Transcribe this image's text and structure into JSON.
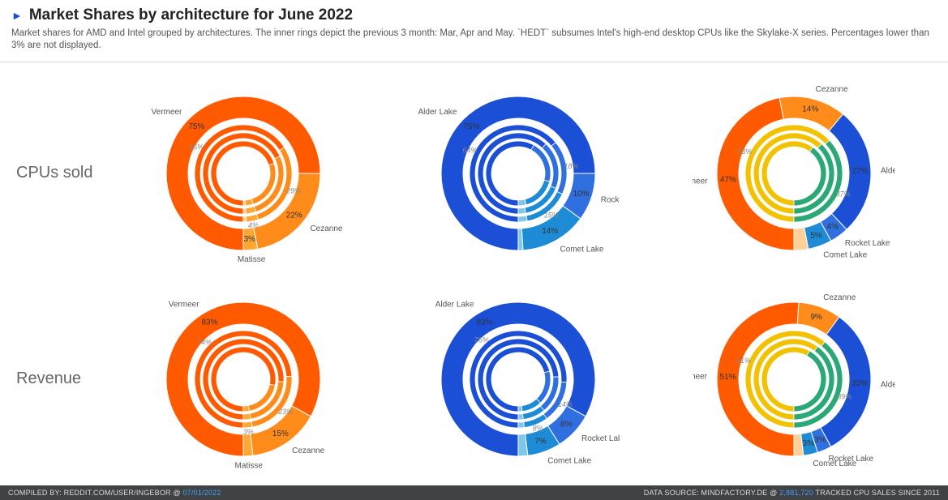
{
  "header": {
    "marker": "►",
    "title": "Market Shares by architecture for June 2022",
    "subtitle": "Market shares for AMD and Intel grouped by architectures. The inner rings depict the previous 3 month: Mar, Apr and May. `HEDT` subsumes Intel's high-end desktop CPUs like the Skylake-X series. Percentages lower than 3% are not displayed."
  },
  "rows": [
    {
      "label": "CPUs sold"
    },
    {
      "label": "Revenue"
    }
  ],
  "footer": {
    "left_prefix": "COMPILED BY: REDDIT.COM/USER/INGEBOR @ ",
    "left_link": "07/01/2022",
    "right_prefix": "DATA SOURCE: MINDFACTORY.DE @ ",
    "right_link": "2,881,720",
    "right_suffix": "  TRACKED CPU SALES SINCE 2011"
  },
  "style": {
    "donut_outer_r": 95,
    "donut_outer_inner": 68,
    "ring_r": [
      60,
      50,
      40
    ],
    "ring_w": 7,
    "hole_r": 32,
    "chart_size": 250,
    "label_radius_offset": 28,
    "title_fontsize": 19,
    "subtitle_fontsize": 11.5,
    "rowlabel_fontsize": 20,
    "seg_fontsize": 10,
    "cat_fontsize": 10,
    "footer_bg": "#404244",
    "footer_fg": "#dcdcdc",
    "link_color": "#3fa0ff",
    "bg": "#ffffff"
  },
  "colors": {
    "vermeer": "#ff5a00",
    "cezanne": "#ff8c1a",
    "matisse": "#ffa733",
    "amd_other": "#ffd199",
    "alder": "#1a4fd6",
    "rocket": "#2f6fe0",
    "comet": "#1e8bd6",
    "intel_other": "#7fc6e8",
    "combined_alder": "#1a4fd6",
    "combined_rocket": "#2f6fe0",
    "combined_comet": "#1e8bd6",
    "combined_vermeer": "#ff5a00",
    "combined_cezanne": "#ff8c1a",
    "inner_amd": "#ff5a00",
    "inner_amd2": "#ffa733",
    "inner_intel": "#f2c200",
    "inner_intel2": "#2aa876"
  },
  "charts": [
    {
      "row": 0,
      "col": 0,
      "name": "amd-cpus",
      "outer": [
        {
          "label": "Vermeer",
          "value": 75,
          "color": "#ff5a00",
          "cat": "Vermeer",
          "show": true
        },
        {
          "label": "Cezanne",
          "value": 22,
          "color": "#ff8c1a",
          "cat": "Cezanne",
          "show": true
        },
        {
          "label": "Matisse",
          "value": 3,
          "color": "#ffa733",
          "cat": "Matisse",
          "show": true
        }
      ],
      "rings": [
        [
          {
            "value": 66,
            "color": "#ff5a00",
            "show": true
          },
          {
            "value": 29,
            "color": "#ff8c1a",
            "show": true
          },
          {
            "value": 4,
            "color": "#ffa733",
            "show": true
          },
          {
            "value": 1,
            "color": "#ffd199",
            "show": false
          }
        ],
        [
          {
            "value": 68,
            "color": "#ff5a00",
            "show": false
          },
          {
            "value": 27,
            "color": "#ff8c1a",
            "show": false
          },
          {
            "value": 4,
            "color": "#ffa733",
            "show": false
          },
          {
            "value": 1,
            "color": "#ffd199",
            "show": false
          }
        ],
        [
          {
            "value": 70,
            "color": "#ff5a00",
            "show": false
          },
          {
            "value": 25,
            "color": "#ff8c1a",
            "show": false
          },
          {
            "value": 4,
            "color": "#ffa733",
            "show": false
          },
          {
            "value": 1,
            "color": "#ffd199",
            "show": false
          }
        ]
      ]
    },
    {
      "row": 0,
      "col": 1,
      "name": "intel-cpus",
      "outer": [
        {
          "label": "Alder Lake",
          "value": 75,
          "color": "#1a4fd6",
          "cat": "Alder Lake",
          "show": true
        },
        {
          "label": "Rocket Lake",
          "value": 10,
          "color": "#2f6fe0",
          "cat": "Rocket Lake",
          "show": true
        },
        {
          "label": "Comet Lake",
          "value": 14,
          "color": "#1e8bd6",
          "cat": "Comet Lake",
          "show": true
        },
        {
          "label": null,
          "value": 1,
          "color": "#7fc6e8",
          "cat": null,
          "show": false
        }
      ],
      "rings": [
        [
          {
            "value": 64,
            "color": "#1a4fd6",
            "show": true
          },
          {
            "value": 18,
            "color": "#2f6fe0",
            "show": true
          },
          {
            "value": 15,
            "color": "#1e8bd6",
            "show": true
          },
          {
            "value": 3,
            "color": "#7fc6e8",
            "show": false
          }
        ],
        [
          {
            "value": 62,
            "color": "#1a4fd6",
            "show": false
          },
          {
            "value": 19,
            "color": "#2f6fe0",
            "show": false
          },
          {
            "value": 16,
            "color": "#1e8bd6",
            "show": false
          },
          {
            "value": 3,
            "color": "#7fc6e8",
            "show": false
          }
        ],
        [
          {
            "value": 58,
            "color": "#1a4fd6",
            "show": false
          },
          {
            "value": 21,
            "color": "#2f6fe0",
            "show": false
          },
          {
            "value": 17,
            "color": "#1e8bd6",
            "show": false
          },
          {
            "value": 4,
            "color": "#7fc6e8",
            "show": false
          }
        ]
      ]
    },
    {
      "row": 0,
      "col": 2,
      "name": "combined-cpus",
      "outer": [
        {
          "label": "Vermeer",
          "value": 47,
          "color": "#ff5a00",
          "cat": "Vermeer",
          "show": true
        },
        {
          "label": "Cezanne",
          "value": 14,
          "color": "#ff8c1a",
          "cat": "Cezanne",
          "show": true
        },
        {
          "label": "Alder Lake",
          "value": 27,
          "color": "#1a4fd6",
          "cat": "Alder Lake",
          "show": true
        },
        {
          "label": "Rocket Lake",
          "value": 4,
          "color": "#2f6fe0",
          "cat": "Rocket Lake",
          "show": true
        },
        {
          "label": "Comet Lake",
          "value": 5,
          "color": "#1e8bd6",
          "cat": "Comet Lake",
          "show": true
        },
        {
          "label": null,
          "value": 3,
          "color": "#ffd199",
          "cat": null,
          "show": false
        }
      ],
      "rings": [
        [
          {
            "value": 63,
            "color": "#f2c200",
            "show": true
          },
          {
            "value": 37,
            "color": "#2aa876",
            "show": true
          }
        ],
        [
          {
            "value": 62,
            "color": "#f2c200",
            "show": false
          },
          {
            "value": 38,
            "color": "#2aa876",
            "show": false
          }
        ],
        [
          {
            "value": 60,
            "color": "#f2c200",
            "show": false
          },
          {
            "value": 40,
            "color": "#2aa876",
            "show": false
          }
        ]
      ]
    },
    {
      "row": 1,
      "col": 0,
      "name": "amd-revenue",
      "outer": [
        {
          "label": "Vermeer",
          "value": 83,
          "color": "#ff5a00",
          "cat": "Vermeer",
          "show": true
        },
        {
          "label": "Cezanne",
          "value": 15,
          "color": "#ff8c1a",
          "cat": "Cezanne",
          "show": true
        },
        {
          "label": "Matisse",
          "value": 2,
          "color": "#ffa733",
          "cat": "Matisse",
          "show": false
        }
      ],
      "rings": [
        [
          {
            "value": 74,
            "color": "#ff5a00",
            "show": true
          },
          {
            "value": 23,
            "color": "#ff8c1a",
            "show": true
          },
          {
            "value": 3,
            "color": "#ffa733",
            "show": true
          }
        ],
        [
          {
            "value": 76,
            "color": "#ff5a00",
            "show": false
          },
          {
            "value": 21,
            "color": "#ff8c1a",
            "show": false
          },
          {
            "value": 3,
            "color": "#ffa733",
            "show": false
          }
        ],
        [
          {
            "value": 78,
            "color": "#ff5a00",
            "show": false
          },
          {
            "value": 19,
            "color": "#ff8c1a",
            "show": false
          },
          {
            "value": 3,
            "color": "#ffa733",
            "show": false
          }
        ]
      ]
    },
    {
      "row": 1,
      "col": 1,
      "name": "intel-revenue",
      "outer": [
        {
          "label": "Alder Lake",
          "value": 83,
          "color": "#1a4fd6",
          "cat": "Alder Lake",
          "show": true
        },
        {
          "label": "Rocket Lake",
          "value": 8,
          "color": "#2f6fe0",
          "cat": "Rocket Lake",
          "show": true
        },
        {
          "label": "Comet Lake",
          "value": 7,
          "color": "#1e8bd6",
          "cat": "Comet Lake",
          "show": true
        },
        {
          "label": null,
          "value": 2,
          "color": "#7fc6e8",
          "cat": null,
          "show": false
        }
      ],
      "rings": [
        [
          {
            "value": 76,
            "color": "#1a4fd6",
            "show": true
          },
          {
            "value": 14,
            "color": "#2f6fe0",
            "show": true
          },
          {
            "value": 8,
            "color": "#1e8bd6",
            "show": true
          },
          {
            "value": 2,
            "color": "#7fc6e8",
            "show": false
          }
        ],
        [
          {
            "value": 74,
            "color": "#1a4fd6",
            "show": false
          },
          {
            "value": 15,
            "color": "#2f6fe0",
            "show": false
          },
          {
            "value": 9,
            "color": "#1e8bd6",
            "show": false
          },
          {
            "value": 2,
            "color": "#7fc6e8",
            "show": false
          }
        ],
        [
          {
            "value": 71,
            "color": "#1a4fd6",
            "show": false
          },
          {
            "value": 17,
            "color": "#2f6fe0",
            "show": false
          },
          {
            "value": 10,
            "color": "#1e8bd6",
            "show": false
          },
          {
            "value": 2,
            "color": "#7fc6e8",
            "show": false
          }
        ]
      ]
    },
    {
      "row": 1,
      "col": 2,
      "name": "combined-revenue",
      "outer": [
        {
          "label": "Vermeer",
          "value": 51,
          "color": "#ff5a00",
          "cat": "Vermeer",
          "show": true
        },
        {
          "label": "Cezanne",
          "value": 9,
          "color": "#ff8c1a",
          "cat": "Cezanne",
          "show": true
        },
        {
          "label": "Alder Lake",
          "value": 32,
          "color": "#1a4fd6",
          "cat": "Alder Lake",
          "show": true
        },
        {
          "label": "Rocket Lake",
          "value": 3,
          "color": "#2f6fe0",
          "cat": "Rocket Lake",
          "show": true
        },
        {
          "label": "Comet Lake",
          "value": 3,
          "color": "#1e8bd6",
          "cat": "Comet Lake",
          "show": true
        },
        {
          "label": null,
          "value": 2,
          "color": "#ffd199",
          "cat": null,
          "show": false
        }
      ],
      "rings": [
        [
          {
            "value": 61,
            "color": "#f2c200",
            "show": true
          },
          {
            "value": 39,
            "color": "#2aa876",
            "show": true
          }
        ],
        [
          {
            "value": 60,
            "color": "#f2c200",
            "show": false
          },
          {
            "value": 40,
            "color": "#2aa876",
            "show": false
          }
        ],
        [
          {
            "value": 58,
            "color": "#f2c200",
            "show": false
          },
          {
            "value": 42,
            "color": "#2aa876",
            "show": false
          }
        ]
      ]
    }
  ]
}
